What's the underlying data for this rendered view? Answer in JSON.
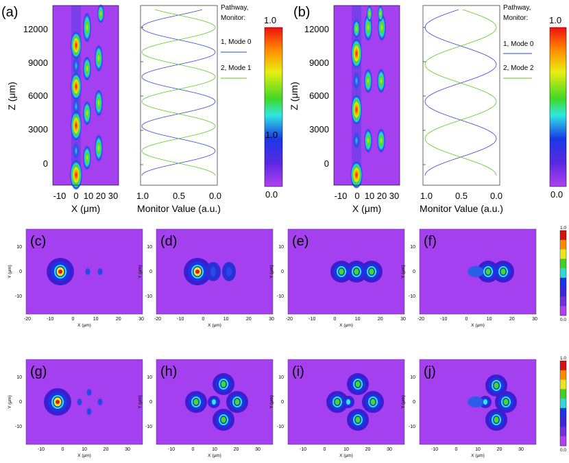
{
  "figure": {
    "panels": {
      "a": {
        "label": "(a)"
      },
      "b": {
        "label": "(b)"
      },
      "c": {
        "label": "(c)"
      },
      "d": {
        "label": "(d)"
      },
      "e": {
        "label": "(e)"
      },
      "f": {
        "label": "(f)"
      },
      "g": {
        "label": "(g)"
      },
      "h": {
        "label": "(h)"
      },
      "i": {
        "label": "(i)"
      },
      "j": {
        "label": "(j)"
      }
    },
    "top": {
      "z_axis_label": "Z (μm)",
      "z_ticks": [
        "12000",
        "9000",
        "6000",
        "3000",
        "0"
      ],
      "x_axis_label": "X (μm)",
      "x_ticks": [
        "-10",
        "0",
        "10",
        "20",
        "30"
      ],
      "monitor_axis_label": "Monitor Value (a.u.)",
      "monitor_ticks": [
        "1.0",
        "0.5",
        "0.0"
      ],
      "legend_title_1": "Pathway,",
      "legend_title_2": "Monitor:",
      "legend_a": [
        "1, Mode 0",
        "2, Mode 1"
      ],
      "legend_b": [
        "1, Mode 0",
        "2, Mode 2"
      ],
      "colorbar_max": "1.0",
      "colorbar_min": "0.0"
    },
    "small": {
      "y_axis_label": "Y (μm)",
      "x_axis_label": "X (μm)",
      "y_ticks": [
        "10",
        "0",
        "-10"
      ],
      "x_ticks_row1": [
        "-20",
        "-10",
        "0",
        "10",
        "20",
        "30"
      ],
      "x_ticks_row2": [
        "-10",
        "0",
        "10",
        "20",
        "30"
      ],
      "colorbar_max": "1.0",
      "colorbar_min": "0.0"
    },
    "colors": {
      "background_field": "#a540f0",
      "mode0_line": "#2f45d8",
      "mode1_line": "#5cc81e"
    }
  }
}
